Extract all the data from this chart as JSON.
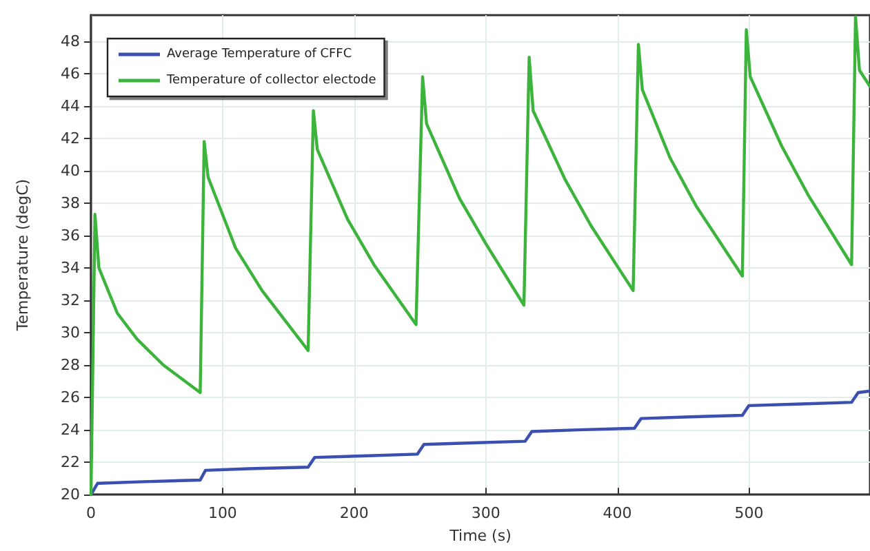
{
  "chart_data": {
    "type": "line",
    "xlabel": "Time (s)",
    "ylabel": "Temperature (degC)",
    "xlim": [
      0,
      592
    ],
    "ylim": [
      20,
      49.6
    ],
    "xticks": [
      0,
      100,
      200,
      300,
      400,
      500
    ],
    "yticks": [
      20,
      22,
      24,
      26,
      28,
      30,
      32,
      34,
      36,
      38,
      40,
      42,
      44,
      46,
      48
    ],
    "grid": true,
    "legend": "top left",
    "marker": "none",
    "line_style": "solid",
    "series": [
      {
        "name": "Average Temperature of CFFC",
        "color": "#3a4fb0",
        "x": [
          0,
          5,
          40,
          83,
          87,
          120,
          165,
          170,
          210,
          248,
          253,
          290,
          330,
          335,
          370,
          413,
          418,
          455,
          495,
          500,
          540,
          578,
          583,
          592
        ],
        "values": [
          20,
          20.7,
          20.8,
          20.9,
          21.5,
          21.6,
          21.7,
          22.3,
          22.4,
          22.5,
          23.1,
          23.2,
          23.3,
          23.9,
          24.0,
          24.1,
          24.7,
          24.8,
          24.9,
          25.5,
          25.6,
          25.7,
          26.3,
          26.4
        ]
      },
      {
        "name": "Temperature of collector electode",
        "color": "#3cb43c",
        "x": [
          0,
          3,
          6,
          20,
          35,
          55,
          83,
          86,
          89,
          110,
          130,
          165,
          169,
          172,
          195,
          215,
          247,
          252,
          255,
          280,
          300,
          329,
          333,
          336,
          360,
          380,
          412,
          416,
          419,
          440,
          460,
          495,
          498,
          501,
          525,
          545,
          578,
          581,
          584,
          592
        ],
        "values": [
          20,
          37.3,
          34,
          31.2,
          29.6,
          28,
          26.3,
          41.8,
          39.6,
          35.2,
          32.6,
          28.9,
          43.7,
          41.3,
          37,
          34.2,
          30.5,
          45.8,
          42.9,
          38.3,
          35.5,
          31.7,
          47,
          43.7,
          39.5,
          36.6,
          32.6,
          47.8,
          45,
          40.8,
          37.8,
          33.5,
          48.7,
          45.8,
          41.5,
          38.5,
          34.2,
          49.5,
          46.2,
          45.2
        ]
      }
    ]
  }
}
